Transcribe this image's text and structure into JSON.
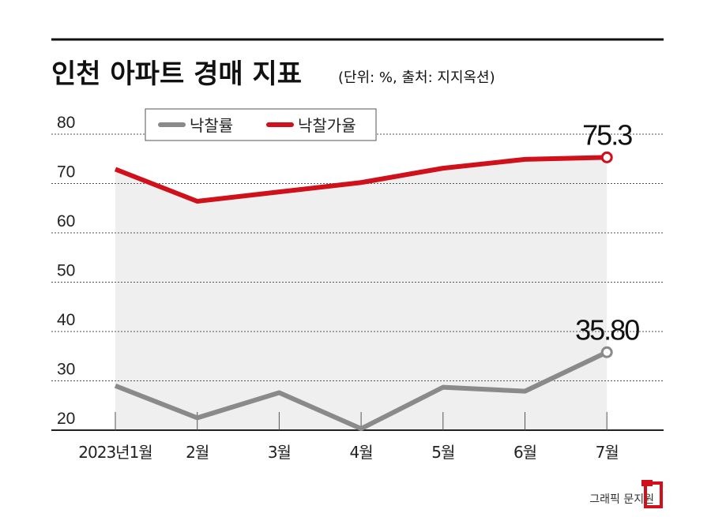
{
  "chart_data": {
    "type": "line",
    "title": "인천 아파트 경매 지표",
    "subtitle": "(단위: %, 출처: 지지옥션)",
    "categories": [
      "2023년1월",
      "2월",
      "3월",
      "4월",
      "5월",
      "6월",
      "7월"
    ],
    "yticks": [
      "80",
      "70",
      "60",
      "50",
      "40",
      "30",
      "20"
    ],
    "ylim": [
      20,
      80
    ],
    "grid": true,
    "legend_position": "top-left",
    "series": [
      {
        "name": "낙찰률",
        "color": "#8a8a8a",
        "values": [
          29.0,
          22.5,
          27.6,
          20.3,
          28.7,
          27.9,
          35.8
        ],
        "end_label": "35.80"
      },
      {
        "name": "낙찰가율",
        "color": "#d0101b",
        "values": [
          72.9,
          66.4,
          68.3,
          70.2,
          73.1,
          74.9,
          75.3
        ],
        "end_label": "75.3"
      }
    ]
  },
  "credit": "그래픽 문지원",
  "logo_color": "#d0101b"
}
